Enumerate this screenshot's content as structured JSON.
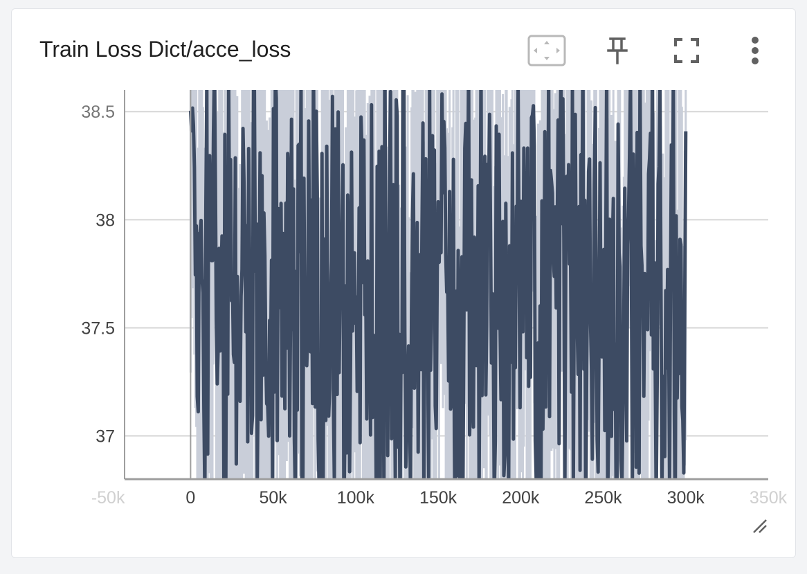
{
  "card": {
    "title": "Train Loss Dict/acce_loss"
  },
  "toolbar": {
    "fit_icon": "fit-to-data-icon",
    "pin_icon": "pin-icon",
    "fullscreen_icon": "fullscreen-icon",
    "more_icon": "more-vert-icon",
    "resize_icon": "resize-handle-icon"
  },
  "colors": {
    "smoothed_line": "#3d4b63",
    "raw_band": "#c9ced9",
    "grid": "#d6d6d6",
    "axis": "#9e9e9e"
  },
  "chart_data": {
    "type": "line",
    "title": "",
    "xlabel": "",
    "ylabel": "",
    "xlim": [
      -40000,
      350000
    ],
    "ylim": [
      36.8,
      38.6
    ],
    "x_ticks": [
      {
        "value": -50000,
        "label": "-50k"
      },
      {
        "value": 0,
        "label": "0"
      },
      {
        "value": 50000,
        "label": "50k"
      },
      {
        "value": 100000,
        "label": "100k"
      },
      {
        "value": 150000,
        "label": "150k"
      },
      {
        "value": 200000,
        "label": "200k"
      },
      {
        "value": 250000,
        "label": "250k"
      },
      {
        "value": 300000,
        "label": "300k"
      },
      {
        "value": 350000,
        "label": "350k"
      }
    ],
    "y_ticks": [
      {
        "value": 37,
        "label": "37"
      },
      {
        "value": 37.5,
        "label": "37.5"
      },
      {
        "value": 38,
        "label": "38"
      },
      {
        "value": 38.5,
        "label": "38.5"
      }
    ],
    "grid": true,
    "series": [
      {
        "x_start": 0,
        "x_end": 300000,
        "y_mean": 37.65,
        "y_min": 36.8,
        "y_max": 38.6
      }
    ]
  }
}
